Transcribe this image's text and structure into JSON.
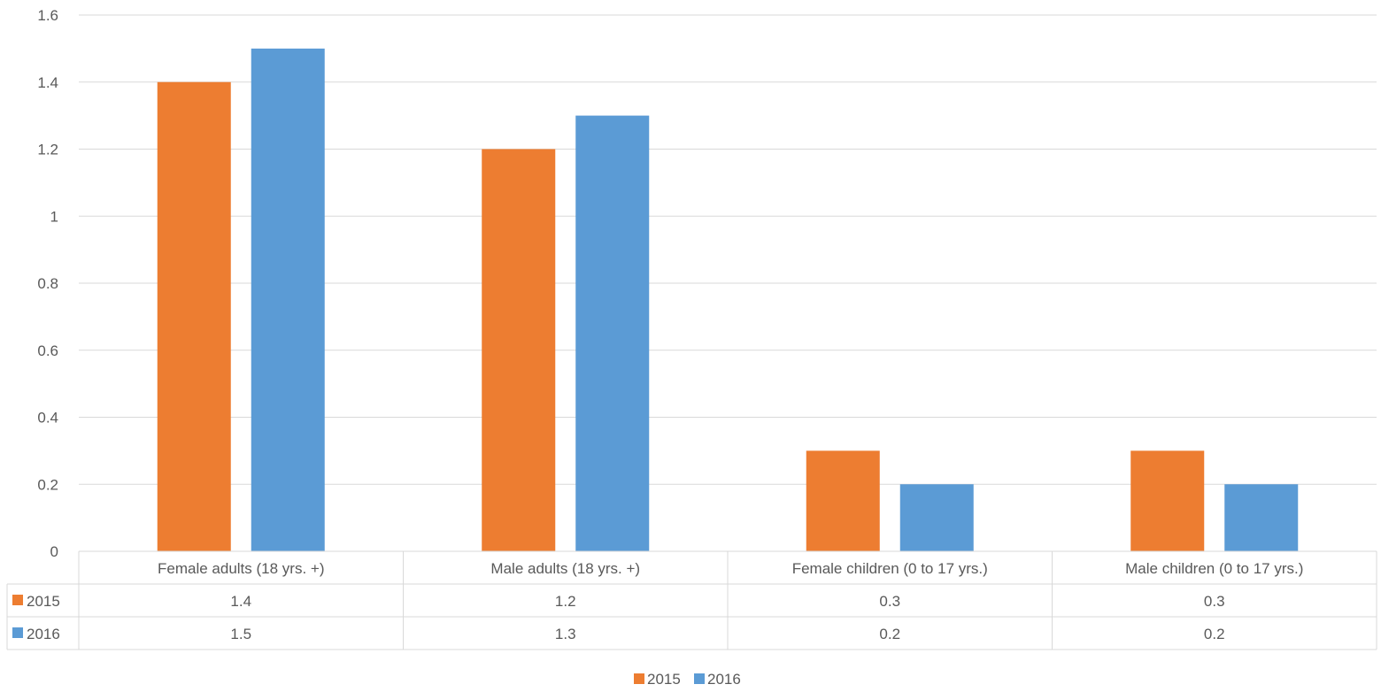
{
  "chart_data": {
    "type": "bar",
    "title": "",
    "xlabel": "",
    "ylabel": "",
    "categories": [
      "Female adults (18 yrs. +)",
      "Male adults (18 yrs. +)",
      "Female children (0 to 17 yrs.)",
      "Male children (0 to 17 yrs.)"
    ],
    "series": [
      {
        "name": "2015",
        "color": "#ED7D31",
        "values": [
          1.4,
          1.2,
          0.3,
          0.3
        ]
      },
      {
        "name": "2016",
        "color": "#5B9BD5",
        "values": [
          1.5,
          1.3,
          0.2,
          0.2
        ]
      }
    ],
    "ylim": [
      0,
      1.6
    ],
    "yticks": [
      "0",
      "0.2",
      "0.4",
      "0.6",
      "0.8",
      "1",
      "1.2",
      "1.4",
      "1.6"
    ],
    "grid": true,
    "data_table": true,
    "legend_position": "bottom"
  }
}
